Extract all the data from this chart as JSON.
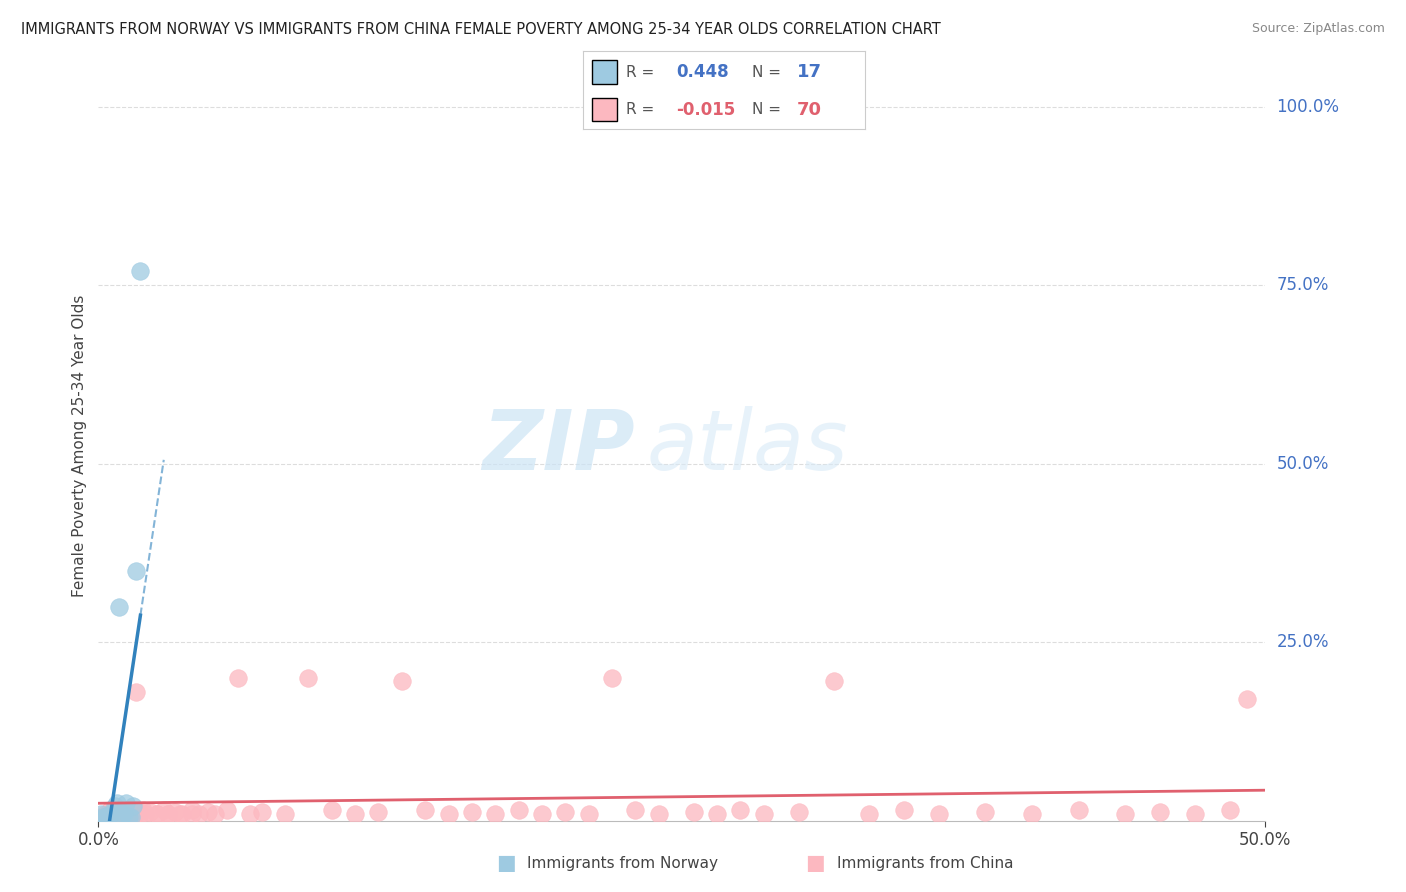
{
  "title": "IMMIGRANTS FROM NORWAY VS IMMIGRANTS FROM CHINA FEMALE POVERTY AMONG 25-34 YEAR OLDS CORRELATION CHART",
  "source": "Source: ZipAtlas.com",
  "ylabel": "Female Poverty Among 25-34 Year Olds",
  "xlim": [
    0.0,
    0.5
  ],
  "ylim": [
    0.0,
    1.05
  ],
  "norway_R": 0.448,
  "norway_N": 17,
  "china_R": -0.015,
  "china_N": 70,
  "norway_color": "#9ecae1",
  "china_color": "#fcb8c0",
  "norway_line_color": "#3182bd",
  "china_line_color": "#e0606e",
  "norway_x": [
    0.001,
    0.002,
    0.003,
    0.004,
    0.005,
    0.006,
    0.007,
    0.008,
    0.009,
    0.01,
    0.011,
    0.012,
    0.013,
    0.014,
    0.015,
    0.016,
    0.018
  ],
  "norway_y": [
    0.01,
    0.005,
    0.005,
    0.005,
    0.01,
    0.01,
    0.02,
    0.025,
    0.3,
    0.01,
    0.01,
    0.025,
    0.005,
    0.005,
    0.02,
    0.35,
    0.77
  ],
  "china_x": [
    0.003,
    0.004,
    0.005,
    0.006,
    0.007,
    0.008,
    0.009,
    0.01,
    0.011,
    0.012,
    0.013,
    0.014,
    0.015,
    0.016,
    0.017,
    0.018,
    0.019,
    0.02,
    0.022,
    0.025,
    0.028,
    0.03,
    0.033,
    0.036,
    0.04,
    0.043,
    0.047,
    0.05,
    0.055,
    0.06,
    0.065,
    0.07,
    0.08,
    0.09,
    0.1,
    0.11,
    0.12,
    0.13,
    0.14,
    0.15,
    0.16,
    0.17,
    0.18,
    0.19,
    0.2,
    0.21,
    0.22,
    0.23,
    0.24,
    0.255,
    0.265,
    0.275,
    0.285,
    0.3,
    0.315,
    0.33,
    0.345,
    0.36,
    0.38,
    0.4,
    0.42,
    0.44,
    0.455,
    0.47,
    0.485,
    0.492,
    0.025,
    0.03,
    0.035,
    0.04
  ],
  "china_y": [
    0.01,
    0.008,
    0.015,
    0.012,
    0.01,
    0.012,
    0.015,
    0.01,
    0.008,
    0.012,
    0.015,
    0.01,
    0.008,
    0.18,
    0.012,
    0.01,
    0.015,
    0.01,
    0.012,
    0.01,
    0.015,
    0.01,
    0.012,
    0.01,
    0.015,
    0.01,
    0.012,
    0.01,
    0.015,
    0.2,
    0.01,
    0.012,
    0.01,
    0.2,
    0.015,
    0.01,
    0.012,
    0.195,
    0.015,
    0.01,
    0.012,
    0.01,
    0.015,
    0.01,
    0.012,
    0.01,
    0.2,
    0.015,
    0.01,
    0.012,
    0.01,
    0.015,
    0.01,
    0.012,
    0.195,
    0.01,
    0.015,
    0.01,
    0.012,
    0.01,
    0.015,
    0.01,
    0.012,
    0.01,
    0.015,
    0.17,
    0.01,
    0.01,
    0.01,
    0.01
  ],
  "watermark_zip": "ZIP",
  "watermark_atlas": "atlas",
  "legend_norway_label": "Immigrants from Norway",
  "legend_china_label": "Immigrants from China",
  "background_color": "#ffffff",
  "grid_color": "#dddddd",
  "ytick_color": "#4472c4",
  "ytick_values": [
    0.25,
    0.5,
    0.75,
    1.0
  ],
  "ytick_labels": [
    "25.0%",
    "50.0%",
    "75.0%",
    "100.0%"
  ],
  "xtick_values": [
    0.0,
    0.5
  ],
  "xtick_labels": [
    "0.0%",
    "50.0%"
  ]
}
